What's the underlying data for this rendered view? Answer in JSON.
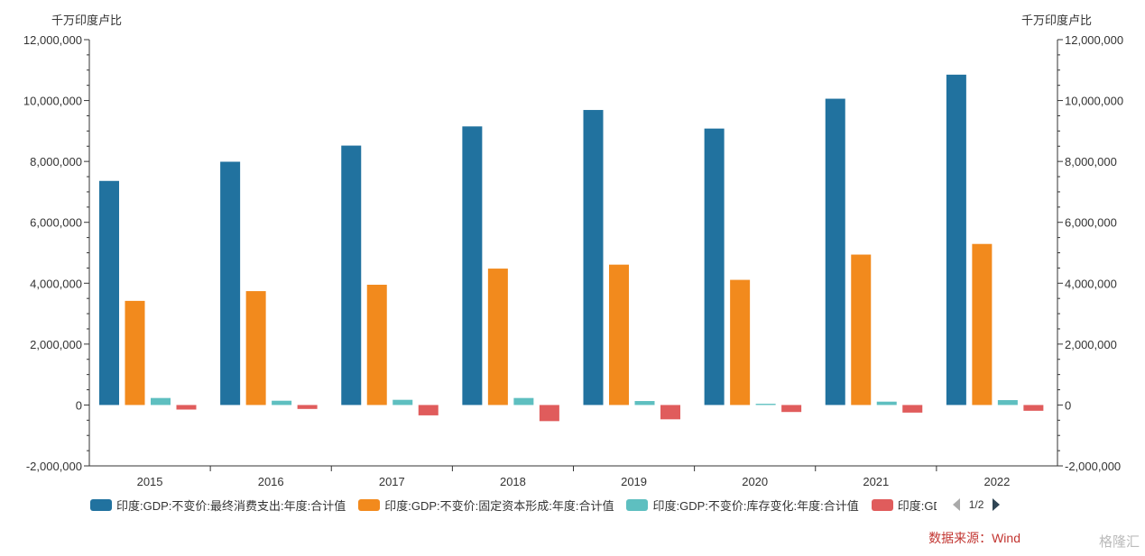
{
  "unit_left": "千万印度卢比",
  "unit_right": "千万印度卢比",
  "chart_data": {
    "type": "bar",
    "categories": [
      "2015",
      "2016",
      "2017",
      "2018",
      "2019",
      "2020",
      "2021",
      "2022"
    ],
    "series": [
      {
        "name": "印度:GDP:不变价:最终消费支出:年度:合计值",
        "color": "#21729f",
        "values": [
          7360000,
          7990000,
          8520000,
          9150000,
          9690000,
          9080000,
          10060000,
          10850000
        ]
      },
      {
        "name": "印度:GDP:不变价:固定资本形成:年度:合计值",
        "color": "#f28a1d",
        "values": [
          3420000,
          3740000,
          3950000,
          4480000,
          4610000,
          4110000,
          4940000,
          5290000
        ]
      },
      {
        "name": "印度:GDP:不变价:库存变化:年度:合计值",
        "color": "#5ebfc0",
        "values": [
          230000,
          140000,
          170000,
          230000,
          130000,
          40000,
          110000,
          160000
        ]
      },
      {
        "name": "印度:GDP:不变价",
        "legend_visible": "印度:GDP:不",
        "color": "#e05c5c",
        "values": [
          -150000,
          -130000,
          -340000,
          -530000,
          -470000,
          -230000,
          -250000,
          -190000
        ]
      }
    ],
    "ylim": [
      -2000000,
      12000000
    ],
    "y_ticks": [
      "-2,000,000",
      "0",
      "2,000,000",
      "4,000,000",
      "6,000,000",
      "8,000,000",
      "10,000,000",
      "12,000,000"
    ],
    "y_tick_values": [
      -2000000,
      0,
      2000000,
      4000000,
      6000000,
      8000000,
      10000000,
      12000000
    ],
    "grid": false,
    "legend_position": "bottom"
  },
  "legend": {
    "items": [
      "印度:GDP:不变价:最终消费支出:年度:合计值",
      "印度:GDP:不变价:固定资本形成:年度:合计值",
      "印度:GDP:不变价:库存变化:年度:合计值",
      "印度:GDP:不"
    ],
    "page": "1/2"
  },
  "source": "数据来源：Wind",
  "watermark": "格隆汇"
}
